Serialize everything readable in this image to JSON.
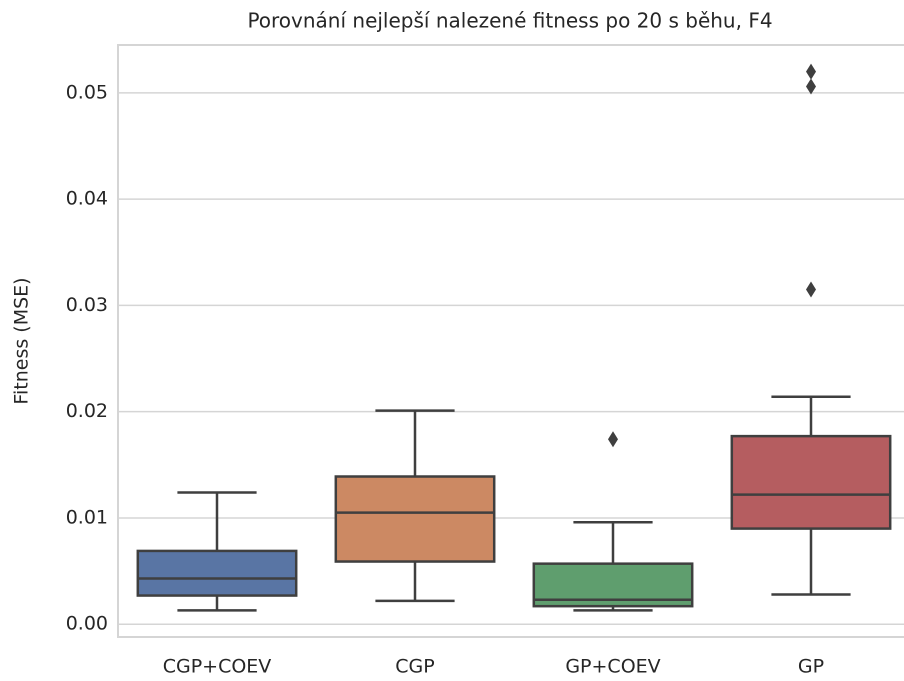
{
  "chart_data": {
    "type": "box",
    "title": "Porovnání nejlepší nalezené fitness po 20 s běhu, F4",
    "ylabel": "Fitness (MSE)",
    "categories": [
      "CGP+COEV",
      "CGP",
      "GP+COEV",
      "GP"
    ],
    "colors": [
      "#5975a4",
      "#cc8963",
      "#5f9e6e",
      "#b55d60"
    ],
    "boxes": [
      {
        "whislo": 0.0013,
        "q1": 0.0027,
        "med": 0.0043,
        "q3": 0.0069,
        "whishi": 0.0124,
        "fliers": []
      },
      {
        "whislo": 0.0022,
        "q1": 0.0059,
        "med": 0.0105,
        "q3": 0.0139,
        "whishi": 0.0201,
        "fliers": []
      },
      {
        "whislo": 0.0013,
        "q1": 0.0017,
        "med": 0.0023,
        "q3": 0.0057,
        "whishi": 0.0096,
        "fliers": [
          0.0174
        ]
      },
      {
        "whislo": 0.0028,
        "q1": 0.009,
        "med": 0.0122,
        "q3": 0.0177,
        "whishi": 0.0214,
        "fliers": [
          0.0315,
          0.0506,
          0.052
        ]
      }
    ],
    "ylim": [
      -0.0012,
      0.0545
    ],
    "yticks": [
      {
        "value": 0,
        "label": "0.00"
      },
      0.01,
      0.02,
      0.03,
      0.04,
      0.05
    ],
    "grid": true
  }
}
